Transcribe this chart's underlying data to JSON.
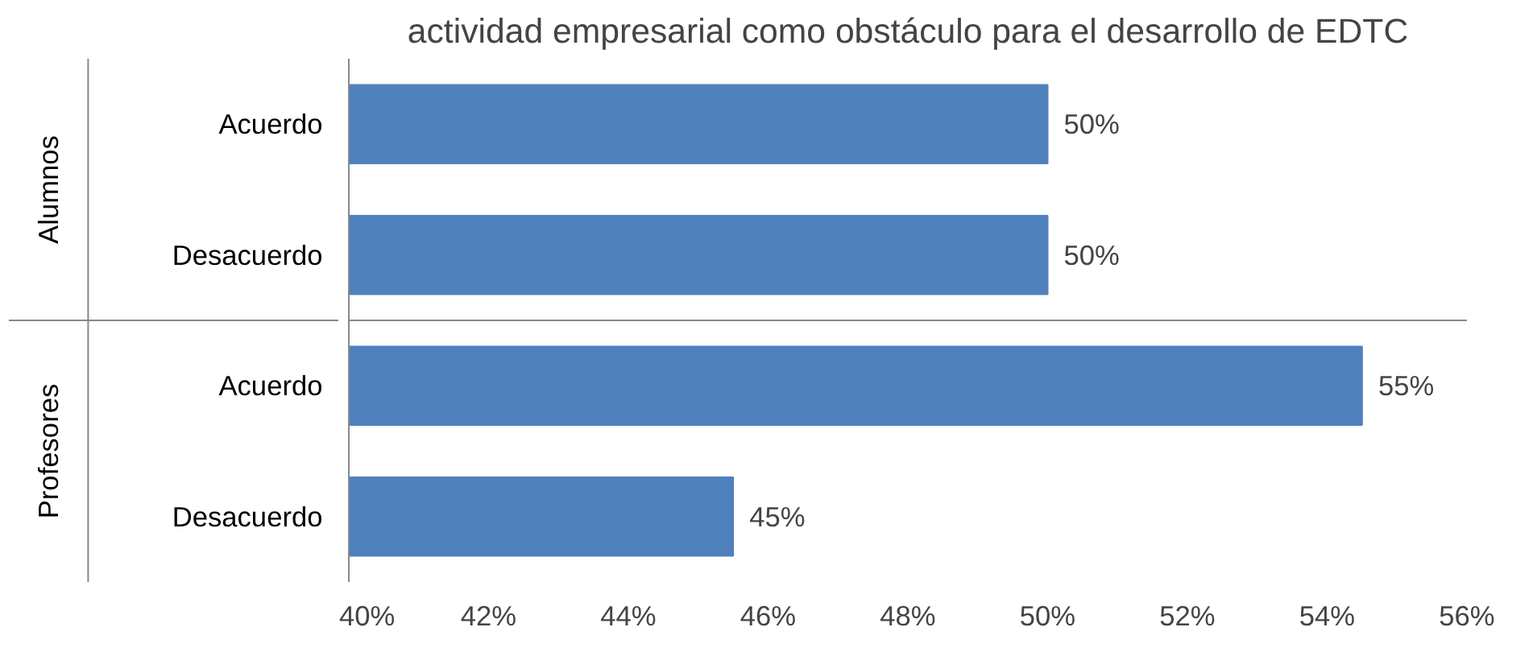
{
  "chart_data": {
    "type": "bar",
    "orientation": "horizontal",
    "title": "actividad empresarial como obstáculo para el desarrollo de EDTC",
    "categories": [
      "Acuerdo",
      "Desacuerdo",
      "Acuerdo",
      "Desacuerdo"
    ],
    "annotations": [
      "Alumnos",
      "Profesores"
    ],
    "values": [
      50,
      50,
      54.5,
      45.5
    ],
    "value_labels": [
      "50%",
      "50%",
      "55%",
      "45%"
    ],
    "color": "#4f81bd",
    "xlim": [
      40,
      56
    ],
    "xticks": [
      {
        "value": 40,
        "label": "40%"
      },
      {
        "value": 42,
        "label": "42%"
      },
      {
        "value": 44,
        "label": "44%"
      },
      {
        "value": 46,
        "label": "46%"
      },
      {
        "value": 48,
        "label": "48%"
      },
      {
        "value": 50,
        "label": "50%"
      },
      {
        "value": 52,
        "label": "52%"
      },
      {
        "value": 54,
        "label": "54%"
      },
      {
        "value": 56,
        "label": "56%"
      }
    ],
    "grid": false
  }
}
